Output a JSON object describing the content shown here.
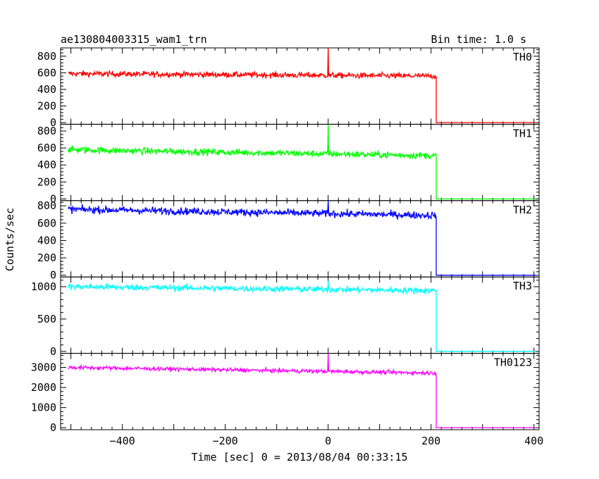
{
  "header": {
    "title": "ae130804003315_wam1_trn",
    "bin_time": "Bin time: 1.0 s"
  },
  "axes": {
    "xlabel": "Time [sec] 0 = 2013/08/04 00:33:15",
    "ylabel": "Counts/sec",
    "xlim": [
      -520,
      410
    ],
    "xticks": [
      -400,
      -200,
      0,
      200,
      400
    ],
    "xtick_labels": [
      "−400",
      "−200",
      "0",
      "200",
      "400"
    ]
  },
  "chart_data": [
    {
      "type": "line",
      "name": "TH0",
      "color": "#ff0000",
      "ylim": [
        -20,
        900
      ],
      "yticks": [
        0,
        200,
        400,
        600,
        800
      ],
      "level_start": 590,
      "level_end": 560,
      "noise": 25,
      "spike_x": 0,
      "spike_y": 900,
      "x_start": -505,
      "x_drop": 210,
      "x_end": 403
    },
    {
      "type": "line",
      "name": "TH1",
      "color": "#00ff00",
      "ylim": [
        -20,
        880
      ],
      "yticks": [
        0,
        200,
        400,
        600,
        800
      ],
      "level_start": 580,
      "level_end": 510,
      "noise": 28,
      "spike_x": 0,
      "spike_y": 880,
      "x_start": -505,
      "x_drop": 210,
      "x_end": 403
    },
    {
      "type": "line",
      "name": "TH2",
      "color": "#0000ff",
      "ylim": [
        -20,
        860
      ],
      "yticks": [
        0,
        200,
        400,
        600,
        800
      ],
      "level_start": 760,
      "level_end": 690,
      "noise": 30,
      "spike_x": 0,
      "spike_y": 860,
      "x_start": -505,
      "x_drop": 210,
      "x_end": 403
    },
    {
      "type": "line",
      "name": "TH3",
      "color": "#00ffff",
      "ylim": [
        -30,
        1150
      ],
      "yticks": [
        0,
        500,
        1000
      ],
      "level_start": 1000,
      "level_end": 940,
      "noise": 35,
      "spike_x": 0,
      "spike_y": 1090,
      "x_start": -505,
      "x_drop": 210,
      "x_end": 403
    },
    {
      "type": "line",
      "name": "TH0123",
      "color": "#ff00ff",
      "ylim": [
        -100,
        3700
      ],
      "yticks": [
        0,
        1000,
        2000,
        3000
      ],
      "level_start": 3000,
      "level_end": 2720,
      "noise": 70,
      "spike_x": 0,
      "spike_y": 3700,
      "x_start": -505,
      "x_drop": 210,
      "x_end": 403
    }
  ]
}
